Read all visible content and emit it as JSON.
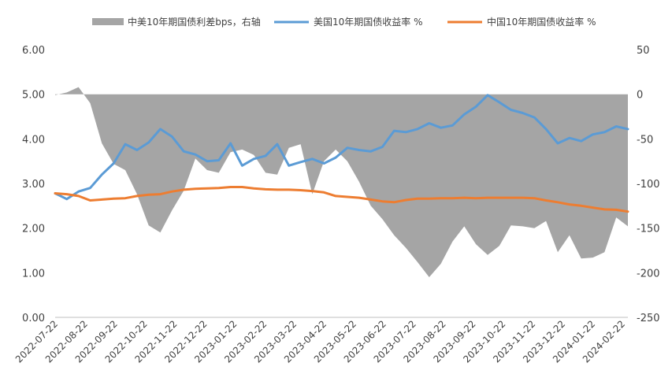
{
  "chart_data": {
    "type": "area+line",
    "legend": {
      "position": "top",
      "items": [
        {
          "label": "中美10年期国债利差bps，右轴",
          "kind": "area",
          "color": "#a5a5a5"
        },
        {
          "label": "美国10年期国债收益率 %",
          "kind": "line",
          "color": "#5b9bd5"
        },
        {
          "label": "中国10年期国债收益率 %",
          "kind": "line",
          "color": "#ed7d31"
        }
      ]
    },
    "left_axis": {
      "min": 0,
      "max": 6,
      "ticks": [
        "6.00",
        "5.00",
        "4.00",
        "3.00",
        "2.00",
        "1.00",
        "0.00"
      ]
    },
    "right_axis": {
      "min": -250,
      "max": 50,
      "ticks": [
        "50",
        "0",
        "-50",
        "-100",
        "-150",
        "-200",
        "-250"
      ]
    },
    "x_labels": [
      "2022-07-22",
      "2022-08-22",
      "2022-09-22",
      "2022-10-22",
      "2022-11-22",
      "2022-12-22",
      "2023-01-22",
      "2023-02-22",
      "2023-03-22",
      "2023-04-22",
      "2023-05-22",
      "2023-06-22",
      "2023-07-22",
      "2023-08-22",
      "2023-09-22",
      "2023-10-22",
      "2023-11-22",
      "2023-12-22",
      "2024-01-22",
      "2024-02-22"
    ],
    "series": [
      {
        "name": "中美10年期国债利差bps，右轴",
        "axis": "right",
        "values": [
          -1,
          2,
          8,
          -10,
          -55,
          -78,
          -85,
          -112,
          -147,
          -155,
          -130,
          -108,
          -72,
          -85,
          -88,
          -65,
          -62,
          -68,
          -88,
          -90,
          -60,
          -56,
          -112,
          -75,
          -62,
          -75,
          -98,
          -125,
          -140,
          -158,
          -172,
          -188,
          -205,
          -190,
          -165,
          -148,
          -168,
          -180,
          -170,
          -147,
          -148,
          -150,
          -142,
          -177,
          -158,
          -184,
          -183,
          -177,
          -138,
          -148
        ]
      },
      {
        "name": "美国10年期国债收益率 %",
        "axis": "left",
        "values": [
          2.78,
          2.65,
          2.82,
          2.9,
          3.2,
          3.45,
          3.88,
          3.75,
          3.92,
          4.22,
          4.05,
          3.72,
          3.65,
          3.5,
          3.52,
          3.9,
          3.4,
          3.55,
          3.62,
          3.88,
          3.4,
          3.48,
          3.55,
          3.45,
          3.58,
          3.8,
          3.75,
          3.72,
          3.82,
          4.18,
          4.15,
          4.22,
          4.35,
          4.25,
          4.3,
          4.55,
          4.72,
          4.98,
          4.82,
          4.65,
          4.58,
          4.48,
          4.22,
          3.9,
          4.02,
          3.95,
          4.1,
          4.15,
          4.28,
          4.22
        ]
      },
      {
        "name": "中国10年期国债收益率 %",
        "axis": "left",
        "values": [
          2.78,
          2.76,
          2.72,
          2.62,
          2.64,
          2.66,
          2.67,
          2.72,
          2.75,
          2.76,
          2.82,
          2.86,
          2.88,
          2.89,
          2.9,
          2.92,
          2.92,
          2.89,
          2.87,
          2.86,
          2.86,
          2.85,
          2.83,
          2.8,
          2.72,
          2.7,
          2.68,
          2.64,
          2.6,
          2.58,
          2.63,
          2.66,
          2.66,
          2.67,
          2.67,
          2.68,
          2.67,
          2.68,
          2.68,
          2.68,
          2.68,
          2.67,
          2.62,
          2.58,
          2.53,
          2.5,
          2.46,
          2.42,
          2.41,
          2.37
        ]
      }
    ]
  }
}
